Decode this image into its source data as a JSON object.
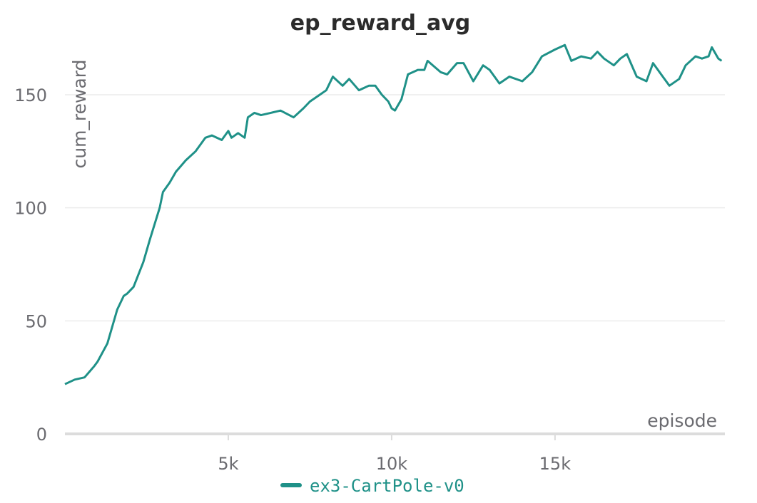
{
  "chart_data": {
    "type": "line",
    "title": "ep_reward_avg",
    "xlabel": "episode",
    "ylabel": "cum_reward",
    "xlim": [
      0,
      20200
    ],
    "ylim": [
      0,
      180
    ],
    "xticks": [
      5000,
      10000,
      15000
    ],
    "xtick_labels": [
      "5k",
      "10k",
      "15k"
    ],
    "yticks": [
      0,
      50,
      100,
      150
    ],
    "ytick_labels": [
      "0",
      "50",
      "100",
      "150"
    ],
    "grid": true,
    "legend_position": "bottom",
    "series": [
      {
        "name": "ex3-CartPole-v0",
        "color": "#1f9188",
        "x": [
          0,
          300,
          600,
          900,
          1000,
          1300,
          1600,
          1800,
          1900,
          2100,
          2400,
          2600,
          2900,
          3000,
          3200,
          3400,
          3700,
          4000,
          4300,
          4500,
          4800,
          5000,
          5100,
          5300,
          5500,
          5600,
          5800,
          6000,
          6300,
          6600,
          7000,
          7300,
          7500,
          7800,
          8000,
          8200,
          8500,
          8700,
          9000,
          9300,
          9500,
          9700,
          9900,
          10000,
          10100,
          10300,
          10500,
          10800,
          11000,
          11100,
          11500,
          11700,
          12000,
          12200,
          12500,
          12800,
          13000,
          13300,
          13600,
          14000,
          14300,
          14600,
          15000,
          15300,
          15500,
          15800,
          16100,
          16300,
          16500,
          16800,
          17000,
          17200,
          17500,
          17800,
          18000,
          18300,
          18500,
          18800,
          19000,
          19300,
          19500,
          19700,
          19800,
          20000,
          20100
        ],
        "values": [
          22,
          24,
          25,
          30,
          32,
          40,
          55,
          61,
          62,
          65,
          76,
          86,
          100,
          107,
          111,
          116,
          121,
          125,
          131,
          132,
          130,
          134,
          131,
          133,
          131,
          140,
          142,
          141,
          142,
          143,
          140,
          144,
          147,
          150,
          152,
          158,
          154,
          157,
          152,
          154,
          154,
          150,
          147,
          144,
          143,
          148,
          159,
          161,
          161,
          165,
          160,
          159,
          164,
          164,
          156,
          163,
          161,
          155,
          158,
          156,
          160,
          167,
          170,
          172,
          165,
          167,
          166,
          169,
          166,
          163,
          166,
          168,
          158,
          156,
          164,
          158,
          154,
          157,
          163,
          167,
          166,
          167,
          171,
          166,
          165
        ]
      }
    ]
  }
}
